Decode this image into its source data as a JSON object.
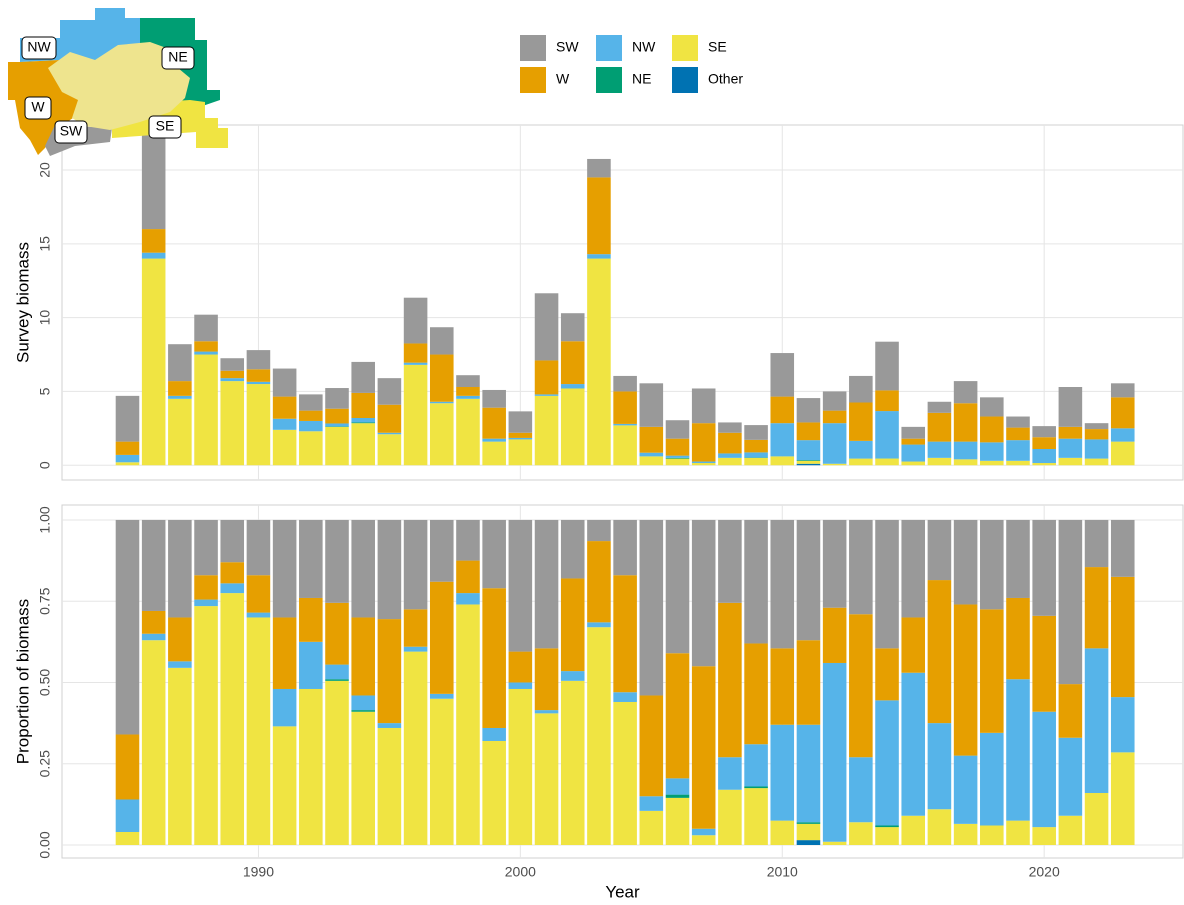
{
  "map": {
    "labels": [
      "NW",
      "NE",
      "W",
      "SW",
      "SE"
    ]
  },
  "chart_data": [
    {
      "type": "stacked-bar",
      "y_label": "Survey biomass",
      "x": [
        1985,
        1986,
        1987,
        1988,
        1989,
        1990,
        1991,
        1992,
        1993,
        1994,
        1995,
        1996,
        1997,
        1998,
        1999,
        2000,
        2001,
        2002,
        2003,
        2004,
        2005,
        2006,
        2007,
        2008,
        2009,
        2010,
        2011,
        2012,
        2013,
        2014,
        2015,
        2016,
        2017,
        2018,
        2019,
        2020,
        2021,
        2022,
        2023
      ],
      "ylim": [
        -1.0,
        23.05
      ],
      "yticks": [
        0,
        5,
        10,
        15,
        20
      ],
      "grid": true,
      "series": [
        {
          "name": "SW",
          "color": "#999999",
          "values": [
            3.1,
            6.7,
            2.5,
            1.8,
            0.85,
            1.3,
            1.9,
            1.1,
            1.4,
            2.1,
            1.8,
            3.1,
            1.85,
            0.8,
            1.2,
            1.45,
            4.55,
            1.9,
            1.25,
            1.05,
            2.95,
            1.25,
            2.35,
            0.7,
            1.0,
            2.95,
            1.65,
            1.3,
            1.8,
            3.3,
            0.8,
            0.75,
            1.5,
            1.3,
            0.75,
            0.75,
            2.7,
            0.4,
            0.95
          ]
        },
        {
          "name": "W",
          "color": "#E69F00",
          "values": [
            0.9,
            1.6,
            1.0,
            0.7,
            0.5,
            0.85,
            1.5,
            0.7,
            1.0,
            1.7,
            1.9,
            1.3,
            3.2,
            0.6,
            2.1,
            0.35,
            2.3,
            2.9,
            5.2,
            2.2,
            1.75,
            1.15,
            2.6,
            1.4,
            0.85,
            1.8,
            1.2,
            0.85,
            2.6,
            1.4,
            0.4,
            1.95,
            2.6,
            1.75,
            0.85,
            0.8,
            0.8,
            0.7,
            2.1
          ]
        },
        {
          "name": "NW",
          "color": "#56B4E9",
          "values": [
            0.5,
            0.4,
            0.2,
            0.2,
            0.2,
            0.15,
            0.75,
            0.7,
            0.2,
            0.3,
            0.1,
            0.15,
            0.1,
            0.2,
            0.2,
            0.1,
            0.1,
            0.3,
            0.3,
            0.1,
            0.25,
            0.15,
            0.1,
            0.3,
            0.35,
            2.25,
            1.35,
            2.75,
            1.2,
            3.2,
            1.15,
            1.1,
            1.2,
            1.25,
            1.4,
            0.95,
            1.3,
            1.3,
            0.9
          ]
        },
        {
          "name": "NE",
          "color": "#009E73",
          "values": [
            0,
            0,
            0,
            0,
            0,
            0,
            0,
            0,
            0.03,
            0.05,
            0,
            0,
            0,
            0,
            0,
            0,
            0,
            0,
            0,
            0,
            0,
            0.05,
            0,
            0,
            0.02,
            0,
            0.05,
            0,
            0,
            0.02,
            0,
            0,
            0,
            0,
            0,
            0,
            0,
            0,
            0
          ]
        },
        {
          "name": "SE",
          "color": "#F0E442",
          "values": [
            0.2,
            14.0,
            4.5,
            7.5,
            5.7,
            5.5,
            2.4,
            2.3,
            2.6,
            2.85,
            2.1,
            6.8,
            4.2,
            4.5,
            1.6,
            1.75,
            4.7,
            5.2,
            14.0,
            2.7,
            0.6,
            0.45,
            0.15,
            0.5,
            0.5,
            0.6,
            0.2,
            0.1,
            0.45,
            0.45,
            0.25,
            0.5,
            0.4,
            0.3,
            0.3,
            0.15,
            0.5,
            0.45,
            1.6
          ]
        },
        {
          "name": "Other",
          "color": "#0072B2",
          "values": [
            0,
            0,
            0,
            0,
            0,
            0,
            0,
            0,
            0,
            0,
            0,
            0,
            0,
            0,
            0,
            0,
            0,
            0,
            0,
            0,
            0,
            0,
            0,
            0,
            0,
            0,
            0.1,
            0,
            0,
            0,
            0,
            0,
            0,
            0,
            0,
            0,
            0,
            0,
            0
          ]
        }
      ]
    },
    {
      "type": "stacked-bar",
      "y_label": "Proportion of biomass",
      "x_label": "Year",
      "x": [
        1985,
        1986,
        1987,
        1988,
        1989,
        1990,
        1991,
        1992,
        1993,
        1994,
        1995,
        1996,
        1997,
        1998,
        1999,
        2000,
        2001,
        2002,
        2003,
        2004,
        2005,
        2006,
        2007,
        2008,
        2009,
        2010,
        2011,
        2012,
        2013,
        2014,
        2015,
        2016,
        2017,
        2018,
        2019,
        2020,
        2021,
        2022,
        2023
      ],
      "xlim": [
        1982.5,
        2025.3
      ],
      "xticks": [
        1990,
        2000,
        2010,
        2020
      ],
      "ylim": [
        -0.04,
        1.046
      ],
      "yticks": [
        {
          "value": 0,
          "label": "0.00"
        },
        {
          "value": 0.25,
          "label": "0.25"
        },
        {
          "value": 0.5,
          "label": "0.50"
        },
        {
          "value": 0.75,
          "label": "0.75"
        },
        {
          "value": 1,
          "label": "1.00"
        }
      ],
      "grid": true,
      "series": [
        {
          "color": "#999999",
          "values": [
            0.66,
            0.28,
            0.3,
            0.17,
            0.13,
            0.17,
            0.3,
            0.24,
            0.255,
            0.3,
            0.305,
            0.275,
            0.19,
            0.125,
            0.21,
            0.405,
            0.395,
            0.18,
            0.065,
            0.17,
            0.54,
            0.41,
            0.45,
            0.255,
            0.38,
            0.395,
            0.37,
            0.27,
            0.29,
            0.395,
            0.3,
            0.185,
            0.26,
            0.275,
            0.24,
            0.295,
            0.505,
            0.145,
            0.175
          ]
        },
        {
          "color": "#E69F00",
          "values": [
            0.2,
            0.07,
            0.135,
            0.075,
            0.065,
            0.115,
            0.22,
            0.135,
            0.19,
            0.24,
            0.32,
            0.115,
            0.345,
            0.1,
            0.43,
            0.095,
            0.19,
            0.285,
            0.25,
            0.36,
            0.31,
            0.385,
            0.5,
            0.475,
            0.31,
            0.235,
            0.26,
            0.17,
            0.44,
            0.16,
            0.17,
            0.44,
            0.465,
            0.38,
            0.25,
            0.295,
            0.165,
            0.25,
            0.37
          ]
        },
        {
          "color": "#56B4E9",
          "values": [
            0.1,
            0.02,
            0.02,
            0.02,
            0.03,
            0.015,
            0.115,
            0.145,
            0.045,
            0.045,
            0.015,
            0.015,
            0.015,
            0.035,
            0.04,
            0.02,
            0.01,
            0.03,
            0.015,
            0.03,
            0.045,
            0.05,
            0.02,
            0.1,
            0.13,
            0.295,
            0.3,
            0.55,
            0.2,
            0.385,
            0.44,
            0.265,
            0.21,
            0.285,
            0.435,
            0.355,
            0.24,
            0.445,
            0.17
          ]
        },
        {
          "color": "#009E73",
          "values": [
            0,
            0,
            0,
            0,
            0,
            0,
            0,
            0,
            0.005,
            0.005,
            0,
            0,
            0,
            0,
            0,
            0,
            0,
            0,
            0,
            0,
            0,
            0.01,
            0,
            0,
            0.005,
            0,
            0.005,
            0,
            0,
            0.005,
            0,
            0,
            0,
            0,
            0,
            0,
            0,
            0,
            0
          ]
        },
        {
          "color": "#F0E442",
          "values": [
            0.04,
            0.63,
            0.545,
            0.735,
            0.775,
            0.7,
            0.365,
            0.48,
            0.505,
            0.41,
            0.36,
            0.595,
            0.45,
            0.74,
            0.32,
            0.48,
            0.405,
            0.505,
            0.67,
            0.44,
            0.105,
            0.145,
            0.03,
            0.17,
            0.175,
            0.075,
            0.05,
            0.01,
            0.07,
            0.055,
            0.09,
            0.11,
            0.065,
            0.06,
            0.075,
            0.055,
            0.09,
            0.16,
            0.285
          ]
        },
        {
          "color": "#0072B2",
          "values": [
            0,
            0,
            0,
            0,
            0,
            0,
            0,
            0,
            0,
            0,
            0,
            0,
            0,
            0,
            0,
            0,
            0,
            0,
            0,
            0,
            0,
            0,
            0,
            0,
            0,
            0,
            0.015,
            0,
            0,
            0,
            0,
            0,
            0,
            0,
            0,
            0,
            0,
            0,
            0
          ]
        }
      ]
    }
  ]
}
